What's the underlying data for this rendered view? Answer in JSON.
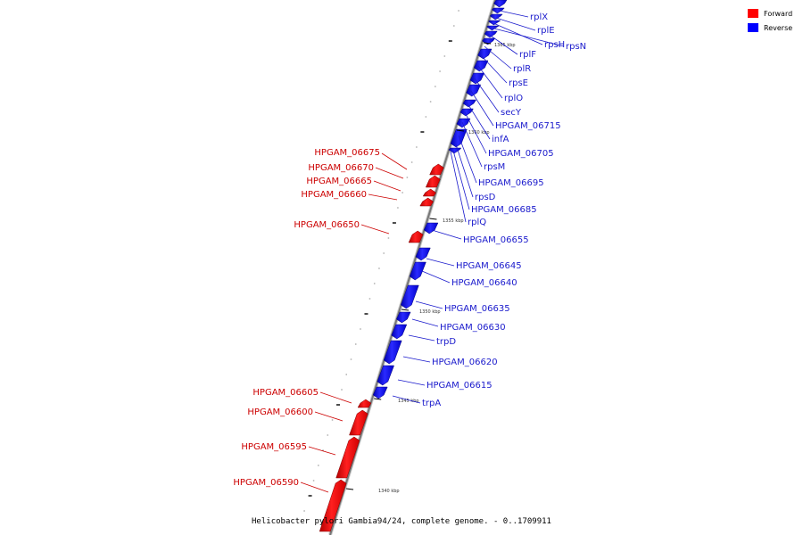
{
  "caption": "Helicobacter pylori Gambia94/24, complete genome. - 0..1709911",
  "legend": [
    {
      "label": "Forward",
      "color": "#ff0000"
    },
    {
      "label": "Reverse",
      "color": "#0000ff"
    }
  ],
  "colors": {
    "forward": "#ff0000",
    "reverse": "#0000ff",
    "forward_label": "#cc0000",
    "reverse_label": "#1a1acc",
    "backbone": "#777777"
  },
  "kbp_markers": [
    {
      "text": "1365 kbp"
    },
    {
      "text": "1360 kbp"
    },
    {
      "text": "1355 kbp"
    },
    {
      "text": "1350 kbp"
    },
    {
      "text": "1345 kbp"
    },
    {
      "text": "1340 kbp"
    }
  ],
  "forward_genes": [
    {
      "label": "HPGAM_06675"
    },
    {
      "label": "HPGAM_06670"
    },
    {
      "label": "HPGAM_06665"
    },
    {
      "label": "HPGAM_06660"
    },
    {
      "label": "HPGAM_06650"
    },
    {
      "label": "HPGAM_06605"
    },
    {
      "label": "HPGAM_06600"
    },
    {
      "label": "HPGAM_06595"
    },
    {
      "label": "HPGAM_06590"
    }
  ],
  "reverse_genes": [
    {
      "label": "rplX"
    },
    {
      "label": "rplE"
    },
    {
      "label": "rpsH"
    },
    {
      "label": "rpsN"
    },
    {
      "label": "rplF"
    },
    {
      "label": "rplR"
    },
    {
      "label": "rpsE"
    },
    {
      "label": "rplO"
    },
    {
      "label": "secY"
    },
    {
      "label": "HPGAM_06715"
    },
    {
      "label": "infA"
    },
    {
      "label": "HPGAM_06705"
    },
    {
      "label": "rpsM"
    },
    {
      "label": "HPGAM_06695"
    },
    {
      "label": "rpsD"
    },
    {
      "label": "HPGAM_06685"
    },
    {
      "label": "rplQ"
    },
    {
      "label": "HPGAM_06655"
    },
    {
      "label": "HPGAM_06645"
    },
    {
      "label": "HPGAM_06640"
    },
    {
      "label": "HPGAM_06635"
    },
    {
      "label": "HPGAM_06630"
    },
    {
      "label": "trpD"
    },
    {
      "label": "HPGAM_06620"
    },
    {
      "label": "HPGAM_06615"
    },
    {
      "label": "trpA"
    }
  ]
}
